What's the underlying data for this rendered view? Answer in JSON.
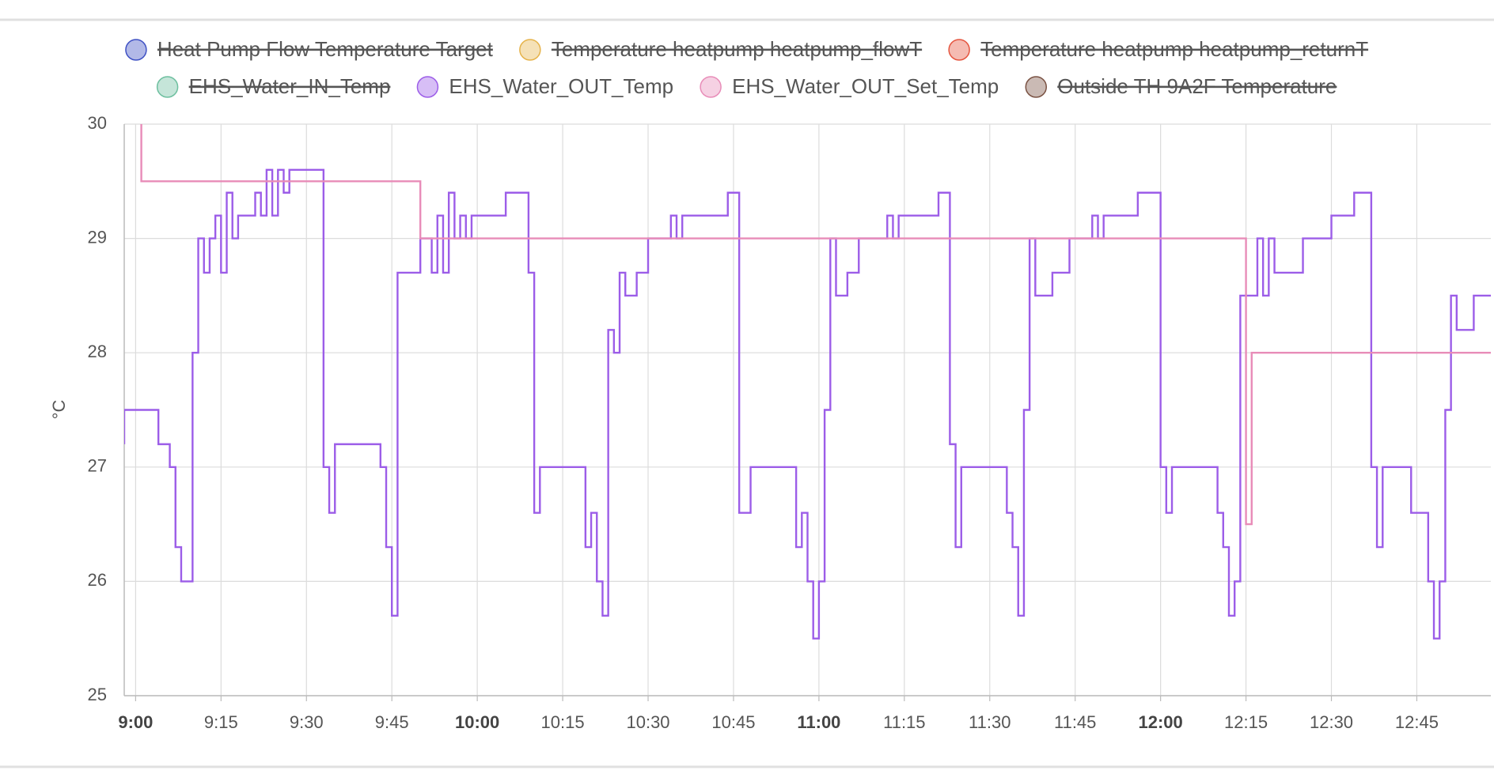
{
  "chart_data": {
    "type": "step-line",
    "y_label": "°C",
    "xlim": [
      "8:58",
      "12:58"
    ],
    "xticks": [
      "9:00",
      "9:15",
      "9:30",
      "9:45",
      "10:00",
      "10:15",
      "10:30",
      "10:45",
      "11:00",
      "11:15",
      "11:30",
      "11:45",
      "12:00",
      "12:15",
      "12:30",
      "12:45"
    ],
    "ylim": [
      25,
      30
    ],
    "yticks": [
      25,
      26,
      27,
      28,
      29,
      30
    ],
    "grid": true,
    "series": [
      {
        "name": "Heat Pump Flow Temperature Target",
        "color": "#3f51c4",
        "hidden": true
      },
      {
        "name": "Temperature heatpump heatpump_flowT",
        "color": "#e6b34a",
        "hidden": true
      },
      {
        "name": "Temperature heatpump heatpump_returnT",
        "color": "#e5553f",
        "hidden": true
      },
      {
        "name": "EHS_Water_IN_Temp",
        "color": "#6dbf9f",
        "hidden": true
      },
      {
        "name": "EHS_Water_OUT_Temp",
        "color": "#9c5de8",
        "hidden": false,
        "x": [
          "8:58",
          "8:58",
          "9:04",
          "9:06",
          "9:07",
          "9:08",
          "9:10",
          "9:11",
          "9:12",
          "9:13",
          "9:14",
          "9:15",
          "9:16",
          "9:17",
          "9:18",
          "9:21",
          "9:22",
          "9:23",
          "9:24",
          "9:25",
          "9:26",
          "9:27",
          "9:33",
          "9:34",
          "9:35",
          "9:43",
          "9:44",
          "9:45",
          "9:46",
          "9:50",
          "9:52",
          "9:53",
          "9:54",
          "9:55",
          "9:56",
          "9:57",
          "9:58",
          "9:59",
          "10:05",
          "10:09",
          "10:10",
          "10:11",
          "10:19",
          "10:20",
          "10:21",
          "10:22",
          "10:23",
          "10:24",
          "10:25",
          "10:26",
          "10:28",
          "10:30",
          "10:34",
          "10:35",
          "10:36",
          "10:44",
          "10:46",
          "10:48",
          "10:56",
          "10:57",
          "10:58",
          "10:59",
          "11:00",
          "11:01",
          "11:02",
          "11:03",
          "11:05",
          "11:07",
          "11:12",
          "11:13",
          "11:14",
          "11:21",
          "11:23",
          "11:24",
          "11:25",
          "11:33",
          "11:34",
          "11:35",
          "11:36",
          "11:37",
          "11:38",
          "11:41",
          "11:44",
          "11:48",
          "11:49",
          "11:50",
          "11:56",
          "12:00",
          "12:01",
          "12:02",
          "12:10",
          "12:11",
          "12:12",
          "12:13",
          "12:14",
          "12:17",
          "12:18",
          "12:19",
          "12:20",
          "12:25",
          "12:30",
          "12:34",
          "12:37",
          "12:38",
          "12:39",
          "12:44",
          "12:47",
          "12:48",
          "12:49",
          "12:50",
          "12:51",
          "12:52",
          "12:55",
          "12:58"
        ],
        "values": [
          27.2,
          27.5,
          27.2,
          27.0,
          26.3,
          26.0,
          28.0,
          29.0,
          28.7,
          29.0,
          29.2,
          28.7,
          29.4,
          29.0,
          29.2,
          29.4,
          29.2,
          29.6,
          29.2,
          29.6,
          29.4,
          29.6,
          27.0,
          26.6,
          27.2,
          27.0,
          26.3,
          25.7,
          28.7,
          29.0,
          28.7,
          29.2,
          28.7,
          29.4,
          29.0,
          29.2,
          29.0,
          29.2,
          29.4,
          28.7,
          26.6,
          27.0,
          26.3,
          26.6,
          26.0,
          25.7,
          28.2,
          28.0,
          28.7,
          28.5,
          28.7,
          29.0,
          29.2,
          29.0,
          29.2,
          29.4,
          26.6,
          27.0,
          26.3,
          26.6,
          26.0,
          25.5,
          26.0,
          27.5,
          29.0,
          28.5,
          28.7,
          29.0,
          29.2,
          29.0,
          29.2,
          29.4,
          27.2,
          26.3,
          27.0,
          26.6,
          26.3,
          25.7,
          27.5,
          29.0,
          28.5,
          28.7,
          29.0,
          29.2,
          29.0,
          29.2,
          29.4,
          27.0,
          26.6,
          27.0,
          26.6,
          26.3,
          25.7,
          26.0,
          28.5,
          29.0,
          28.5,
          29.0,
          28.7,
          29.0,
          29.2,
          29.4,
          27.0,
          26.3,
          27.0,
          26.6,
          26.0,
          25.5,
          26.0,
          27.5,
          28.5,
          28.2,
          28.5,
          28.5
        ]
      },
      {
        "name": "EHS_Water_OUT_Set_Temp",
        "color": "#e88cb8",
        "hidden": false,
        "x": [
          "9:01",
          "9:01",
          "9:50",
          "12:15",
          "12:16",
          "12:58"
        ],
        "values": [
          30.0,
          29.5,
          29.0,
          26.5,
          28.0,
          28.0
        ]
      },
      {
        "name": "Outside TH 9A2F Temperature",
        "color": "#7a5243",
        "hidden": true
      }
    ]
  }
}
